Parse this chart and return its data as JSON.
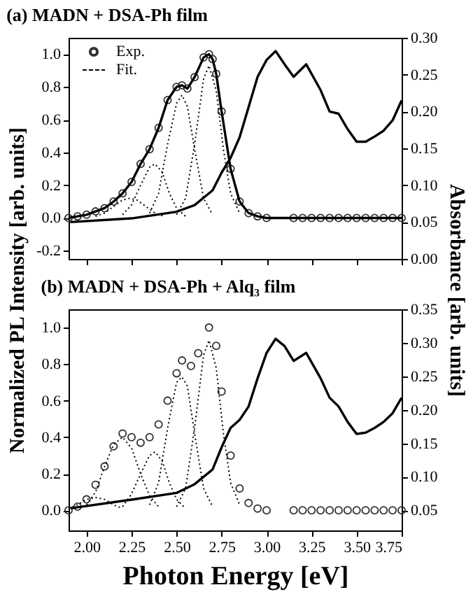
{
  "chart_data": [
    {
      "type": "line",
      "title": "(a) MADN + DSA-Ph  film",
      "ylabel": "Normalized PL Intensity [arb. units]",
      "y2label": "Absorbance [arb. units]",
      "xlim": [
        1.9,
        3.75
      ],
      "xticks": [
        {
          "value": 2.0,
          "label": null
        },
        {
          "value": 2.25,
          "label": null
        },
        {
          "value": 2.5,
          "label": null
        },
        {
          "value": 2.75,
          "label": null
        },
        {
          "value": 3.0,
          "label": null
        },
        {
          "value": 3.25,
          "label": null
        },
        {
          "value": 3.5,
          "label": null
        },
        {
          "value": 3.75,
          "label": null
        }
      ],
      "ylim": [
        -0.25,
        1.1
      ],
      "yticks": [
        {
          "value": -0.2,
          "label": "-0.2"
        },
        {
          "value": 0.0,
          "label": "0.0"
        },
        {
          "value": 0.2,
          "label": "0.2"
        },
        {
          "value": 0.4,
          "label": "0.4"
        },
        {
          "value": 0.6,
          "label": "0.6"
        },
        {
          "value": 0.8,
          "label": "0.8"
        },
        {
          "value": 1.0,
          "label": "1.0"
        }
      ],
      "y2lim": [
        0.0,
        0.3
      ],
      "y2ticks": [
        {
          "value": 0.0,
          "label": "0.00"
        },
        {
          "value": 0.05,
          "label": "0.05"
        },
        {
          "value": 0.1,
          "label": "0.10"
        },
        {
          "value": 0.15,
          "label": "0.15"
        },
        {
          "value": 0.2,
          "label": "0.20"
        },
        {
          "value": 0.25,
          "label": "0.25"
        },
        {
          "value": 0.3,
          "label": "0.30"
        }
      ],
      "tick_labels": "y",
      "grid": false,
      "legend": "top left",
      "series": [
        {
          "name": "Exp.",
          "type": "scatter",
          "marker": "circle",
          "color": "#333333",
          "x": [
            1.9,
            1.95,
            2.0,
            2.05,
            2.1,
            2.15,
            2.2,
            2.25,
            2.3,
            2.35,
            2.4,
            2.45,
            2.5,
            2.53,
            2.56,
            2.6,
            2.65,
            2.68,
            2.7,
            2.72,
            2.75,
            2.8,
            2.85,
            2.9,
            2.95,
            3.0,
            3.15,
            3.2,
            3.25,
            3.3,
            3.35,
            3.4,
            3.45,
            3.5,
            3.55,
            3.6,
            3.65,
            3.7,
            3.75
          ],
          "values": [
            0.0,
            0.01,
            0.02,
            0.04,
            0.06,
            0.1,
            0.15,
            0.22,
            0.33,
            0.42,
            0.55,
            0.72,
            0.8,
            0.81,
            0.79,
            0.86,
            0.98,
            1.0,
            0.97,
            0.88,
            0.65,
            0.3,
            0.1,
            0.03,
            0.01,
            0.0,
            0,
            0,
            0,
            0,
            0,
            0,
            0,
            0,
            0,
            0,
            0,
            0,
            0
          ]
        },
        {
          "line_style": "solid",
          "color": "#000000",
          "x": [
            1.9,
            1.95,
            2.0,
            2.05,
            2.1,
            2.15,
            2.2,
            2.25,
            2.3,
            2.35,
            2.4,
            2.45,
            2.5,
            2.53,
            2.56,
            2.6,
            2.65,
            2.68,
            2.7,
            2.72,
            2.75,
            2.8,
            2.85,
            2.9,
            2.95,
            3.0,
            3.15,
            3.2,
            3.25,
            3.3,
            3.35,
            3.4,
            3.45,
            3.5,
            3.55,
            3.6,
            3.65,
            3.7,
            3.75
          ],
          "values": [
            0.0,
            0.01,
            0.02,
            0.04,
            0.06,
            0.1,
            0.15,
            0.22,
            0.33,
            0.42,
            0.55,
            0.72,
            0.8,
            0.81,
            0.79,
            0.86,
            0.98,
            1.0,
            0.97,
            0.88,
            0.65,
            0.3,
            0.1,
            0.03,
            0.01,
            0.0,
            0,
            0,
            0,
            0,
            0,
            0,
            0,
            0,
            0,
            0,
            0,
            0,
            0
          ]
        },
        {
          "name": "Fit.",
          "line_style": "dotted",
          "color": "#000000",
          "x": [
            2.5,
            2.55,
            2.6,
            2.65,
            2.68,
            2.72,
            2.76,
            2.8,
            2.85
          ],
          "values": [
            0.02,
            0.12,
            0.45,
            0.85,
            0.93,
            0.78,
            0.42,
            0.15,
            0.03
          ]
        },
        {
          "type": "line",
          "line_style": "dotted",
          "color": "#000000",
          "x": [
            2.35,
            2.4,
            2.45,
            2.5,
            2.53,
            2.56,
            2.6,
            2.65,
            2.7
          ],
          "values": [
            0.03,
            0.15,
            0.45,
            0.7,
            0.75,
            0.68,
            0.42,
            0.12,
            0.02
          ]
        },
        {
          "type": "line",
          "line_style": "dotted",
          "color": "#000000",
          "x": [
            2.2,
            2.25,
            2.3,
            2.35,
            2.38,
            2.42,
            2.46,
            2.5,
            2.55
          ],
          "values": [
            0.02,
            0.08,
            0.2,
            0.31,
            0.33,
            0.28,
            0.15,
            0.06,
            0.01
          ]
        },
        {
          "type": "line",
          "line_style": "dotted",
          "color": "#000000",
          "x": [
            2.05,
            2.1,
            2.15,
            2.2,
            2.24,
            2.28,
            2.33,
            2.38,
            2.43
          ],
          "values": [
            0.01,
            0.03,
            0.07,
            0.11,
            0.12,
            0.11,
            0.07,
            0.03,
            0.01
          ]
        },
        {
          "type": "line",
          "axis": "y2",
          "line_style": "solid",
          "color": "#000000",
          "x": [
            1.91,
            2.25,
            2.5,
            2.6,
            2.7,
            2.75,
            2.8,
            2.85,
            2.9,
            2.95,
            3.0,
            3.05,
            3.1,
            3.15,
            3.22,
            3.3,
            3.35,
            3.4,
            3.45,
            3.5,
            3.55,
            3.6,
            3.65,
            3.7,
            3.75
          ],
          "values": [
            0.05,
            0.055,
            0.064,
            0.073,
            0.093,
            0.117,
            0.137,
            0.165,
            0.206,
            0.247,
            0.27,
            0.282,
            0.264,
            0.247,
            0.264,
            0.229,
            0.2,
            0.197,
            0.176,
            0.159,
            0.159,
            0.166,
            0.174,
            0.188,
            0.215
          ]
        }
      ]
    },
    {
      "type": "line",
      "title": "(b) MADN + DSA-Ph + Alq₃ film",
      "xlabel": "Photon Energy [eV]",
      "xlim": [
        1.9,
        3.75
      ],
      "xticks": [
        {
          "value": 2.0,
          "label": "2.00"
        },
        {
          "value": 2.25,
          "label": "2.25"
        },
        {
          "value": 2.5,
          "label": "2.50"
        },
        {
          "value": 2.75,
          "label": "2.75"
        },
        {
          "value": 3.0,
          "label": "3.00"
        },
        {
          "value": 3.25,
          "label": "3.25"
        },
        {
          "value": 3.5,
          "label": "3.50"
        },
        {
          "value": 3.75,
          "label": "3.75"
        }
      ],
      "ylim": [
        -0.11,
        1.1
      ],
      "yticks": [
        {
          "value": 0.0,
          "label": "0.0"
        },
        {
          "value": 0.2,
          "label": "0.2"
        },
        {
          "value": 0.4,
          "label": "0.4"
        },
        {
          "value": 0.6,
          "label": "0.6"
        },
        {
          "value": 0.8,
          "label": "0.8"
        },
        {
          "value": 1.0,
          "label": "1.0"
        }
      ],
      "y2lim": [
        0.02,
        0.35
      ],
      "y2ticks": [
        {
          "value": 0.05,
          "label": "0.05"
        },
        {
          "value": 0.1,
          "label": "0.10"
        },
        {
          "value": 0.15,
          "label": "0.15"
        },
        {
          "value": 0.2,
          "label": "0.20"
        },
        {
          "value": 0.25,
          "label": "0.25"
        },
        {
          "value": 0.3,
          "label": "0.30"
        },
        {
          "value": 0.35,
          "label": "0.35"
        }
      ],
      "grid": false,
      "series": [
        {
          "type": "scatter",
          "marker": "circle",
          "color": "#333333",
          "x": [
            1.9,
            1.95,
            2.0,
            2.05,
            2.1,
            2.15,
            2.2,
            2.25,
            2.3,
            2.35,
            2.4,
            2.45,
            2.5,
            2.53,
            2.58,
            2.62,
            2.68,
            2.72,
            2.75,
            2.8,
            2.85,
            2.9,
            2.95,
            3.0,
            3.15,
            3.2,
            3.25,
            3.3,
            3.35,
            3.4,
            3.45,
            3.5,
            3.55,
            3.6,
            3.65,
            3.7,
            3.75
          ],
          "values": [
            0.0,
            0.02,
            0.06,
            0.14,
            0.24,
            0.35,
            0.42,
            0.4,
            0.37,
            0.4,
            0.47,
            0.6,
            0.75,
            0.82,
            0.79,
            0.86,
            1.0,
            0.9,
            0.65,
            0.3,
            0.12,
            0.04,
            0.01,
            0.0,
            0,
            0,
            0,
            0,
            0,
            0,
            0,
            0,
            0,
            0,
            0,
            0,
            0
          ]
        },
        {
          "type": "line",
          "line_style": "dotted",
          "color": "#000000",
          "x": [
            2.5,
            2.55,
            2.6,
            2.65,
            2.68,
            2.72,
            2.76,
            2.8,
            2.85
          ],
          "values": [
            0.02,
            0.12,
            0.45,
            0.85,
            0.93,
            0.78,
            0.42,
            0.15,
            0.03
          ]
        },
        {
          "type": "line",
          "line_style": "dotted",
          "color": "#000000",
          "x": [
            2.35,
            2.4,
            2.45,
            2.5,
            2.53,
            2.56,
            2.6,
            2.65,
            2.7
          ],
          "values": [
            0.03,
            0.15,
            0.45,
            0.7,
            0.73,
            0.68,
            0.42,
            0.12,
            0.02
          ]
        },
        {
          "type": "line",
          "line_style": "dotted",
          "color": "#000000",
          "x": [
            2.2,
            2.25,
            2.3,
            2.35,
            2.38,
            2.42,
            2.46,
            2.5,
            2.55
          ],
          "values": [
            0.02,
            0.09,
            0.2,
            0.3,
            0.32,
            0.27,
            0.15,
            0.06,
            0.01
          ]
        },
        {
          "type": "line",
          "line_style": "dotted",
          "color": "#000000",
          "x": [
            2.0,
            2.05,
            2.1,
            2.15,
            2.2,
            2.25,
            2.3,
            2.35,
            2.4
          ],
          "values": [
            0.03,
            0.1,
            0.24,
            0.36,
            0.4,
            0.34,
            0.2,
            0.08,
            0.02
          ]
        },
        {
          "type": "line",
          "line_style": "dotted",
          "color": "#000000",
          "x": [
            1.9,
            1.95,
            2.0,
            2.05,
            2.1,
            2.15,
            2.2
          ],
          "values": [
            0.01,
            0.03,
            0.06,
            0.07,
            0.06,
            0.03,
            0.01
          ]
        },
        {
          "type": "line",
          "axis": "y2",
          "line_style": "solid",
          "color": "#000000",
          "x": [
            1.91,
            2.25,
            2.5,
            2.6,
            2.7,
            2.75,
            2.8,
            2.85,
            2.9,
            2.95,
            3.0,
            3.05,
            3.1,
            3.15,
            3.22,
            3.3,
            3.35,
            3.4,
            3.45,
            3.5,
            3.55,
            3.6,
            3.65,
            3.7,
            3.75
          ],
          "values": [
            0.053,
            0.066,
            0.076,
            0.089,
            0.111,
            0.144,
            0.173,
            0.185,
            0.205,
            0.247,
            0.285,
            0.306,
            0.295,
            0.273,
            0.285,
            0.247,
            0.218,
            0.205,
            0.182,
            0.164,
            0.166,
            0.173,
            0.182,
            0.195,
            0.218
          ]
        }
      ]
    }
  ]
}
